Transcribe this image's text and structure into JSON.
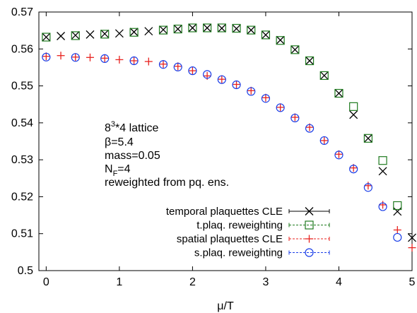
{
  "chart_data": {
    "type": "scatter",
    "xlabel": "μ/T",
    "ylabel": "",
    "xlim": [
      -0.1,
      5.0
    ],
    "ylim": [
      0.5,
      0.57
    ],
    "x_ticks": [
      "0",
      "1",
      "2",
      "3",
      "4",
      "5"
    ],
    "y_ticks": [
      "0.5",
      "0.51",
      "0.52",
      "0.53",
      "0.54",
      "0.55",
      "0.56",
      "0.57"
    ],
    "grid": false,
    "legend_position": "bottom-right",
    "annotation": {
      "lattice_base": "8",
      "lattice_exp": "3",
      "lattice_rest": "*4 lattice",
      "beta": "β=5.4",
      "mass": "mass=0.05",
      "nf_base": "N",
      "nf_sub": "F",
      "nf_rest": "=4",
      "reweight": "reweighted from pq. ens."
    },
    "series": [
      {
        "name": "temporal plaquettes CLE",
        "color": "#000000",
        "marker": "x",
        "x": [
          0.0,
          0.2,
          0.4,
          0.6,
          0.8,
          1.0,
          1.2,
          1.4,
          1.6,
          1.8,
          2.0,
          2.2,
          2.4,
          2.6,
          2.8,
          3.0,
          3.2,
          3.4,
          3.6,
          3.8,
          4.0,
          4.2,
          4.4,
          4.6,
          4.8,
          5.0
        ],
        "y": [
          0.5632,
          0.5635,
          0.5637,
          0.5639,
          0.5641,
          0.5642,
          0.5646,
          0.5648,
          0.5652,
          0.5654,
          0.5657,
          0.5657,
          0.5656,
          0.5655,
          0.5651,
          0.5638,
          0.5624,
          0.5598,
          0.5568,
          0.5528,
          0.548,
          0.5422,
          0.5358,
          0.5269,
          0.516,
          0.5089
        ]
      },
      {
        "name": "t.plaq. reweighting",
        "color": "#1e7a1e",
        "marker": "square",
        "x": [
          0.0,
          0.4,
          0.8,
          1.2,
          1.6,
          1.8,
          2.0,
          2.2,
          2.4,
          2.6,
          2.8,
          3.0,
          3.2,
          3.4,
          3.6,
          3.8,
          4.0,
          4.2,
          4.4,
          4.6,
          4.8
        ],
        "y": [
          0.5632,
          0.5636,
          0.564,
          0.5645,
          0.5651,
          0.5654,
          0.5657,
          0.5657,
          0.5657,
          0.5656,
          0.5651,
          0.5638,
          0.5623,
          0.5598,
          0.5568,
          0.5528,
          0.548,
          0.5444,
          0.5358,
          0.5298,
          0.5176
        ]
      },
      {
        "name": "spatial plaquettes CLE",
        "color": "#e8231f",
        "marker": "plus",
        "x": [
          0.0,
          0.2,
          0.4,
          0.6,
          0.8,
          1.0,
          1.2,
          1.4,
          1.6,
          1.8,
          2.0,
          2.2,
          2.4,
          2.6,
          2.8,
          3.0,
          3.2,
          3.4,
          3.6,
          3.8,
          4.0,
          4.2,
          4.4,
          4.6,
          4.8,
          5.0
        ],
        "y": [
          0.558,
          0.5582,
          0.5578,
          0.5577,
          0.5575,
          0.5571,
          0.5568,
          0.5566,
          0.5559,
          0.5553,
          0.5541,
          0.5527,
          0.5518,
          0.5504,
          0.5487,
          0.5468,
          0.5442,
          0.5415,
          0.5388,
          0.5352,
          0.5315,
          0.5278,
          0.523,
          0.5178,
          0.511,
          0.5062
        ]
      },
      {
        "name": "s.plaq. reweighting",
        "color": "#1a3ee8",
        "marker": "circle",
        "x": [
          0.0,
          0.4,
          0.8,
          1.2,
          1.6,
          1.8,
          2.0,
          2.2,
          2.4,
          2.6,
          2.8,
          3.0,
          3.2,
          3.4,
          3.6,
          3.8,
          4.0,
          4.2,
          4.4,
          4.6,
          4.8
        ],
        "y": [
          0.5578,
          0.5577,
          0.5574,
          0.5568,
          0.5558,
          0.5551,
          0.5541,
          0.5531,
          0.5517,
          0.5503,
          0.5485,
          0.5466,
          0.5441,
          0.5413,
          0.5385,
          0.5352,
          0.5313,
          0.5275,
          0.5225,
          0.5173,
          0.509
        ]
      }
    ]
  }
}
